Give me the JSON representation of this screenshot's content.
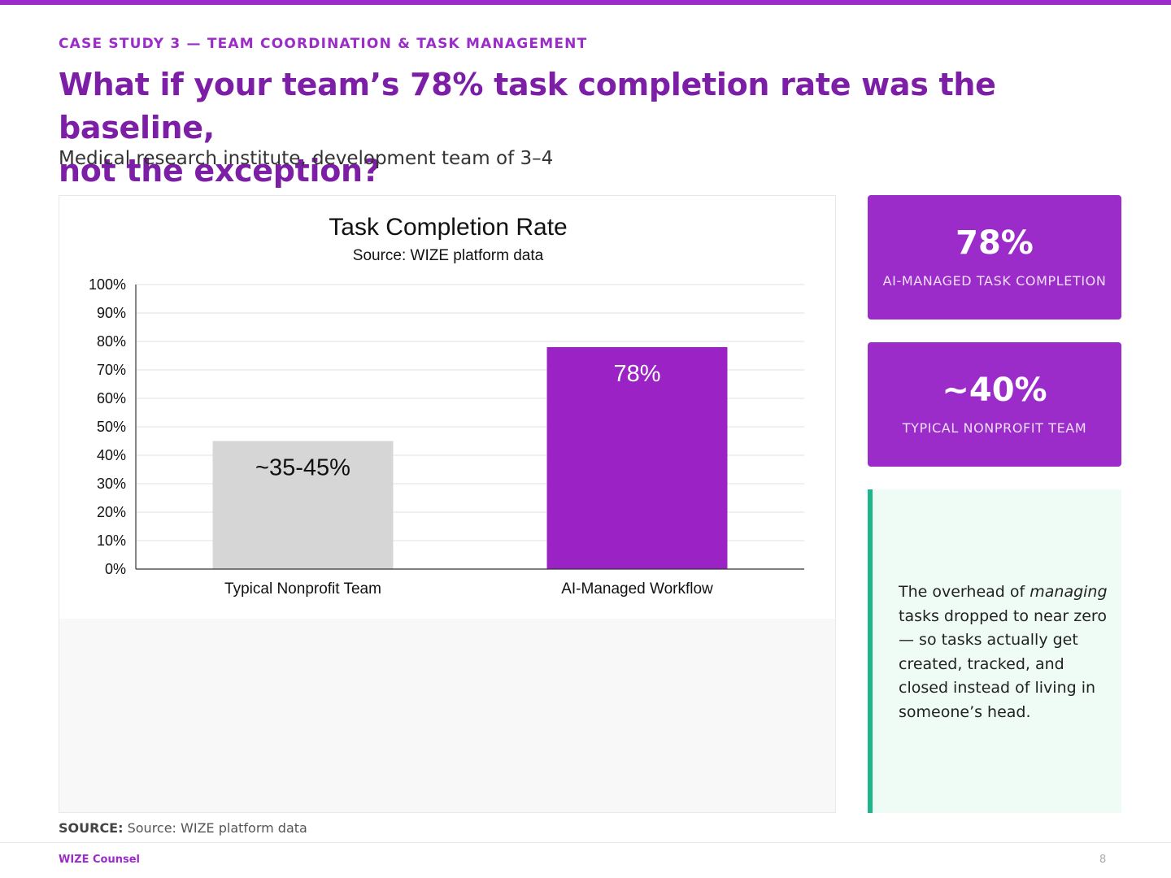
{
  "header": {
    "eyebrow": "CASE STUDY 3 — TEAM COORDINATION & TASK MANAGEMENT",
    "title_line1": "What if your team’s 78% task completion rate was the baseline,",
    "title_line2": "not the exception?",
    "subtitle": "Medical research institute, development team of 3–4"
  },
  "chart_data": {
    "type": "bar",
    "title": "Task Completion Rate",
    "subtitle": "Source: WIZE platform data",
    "categories": [
      "Typical Nonprofit Team",
      "AI-Managed Workflow"
    ],
    "values": [
      45,
      78
    ],
    "data_labels": [
      "~35-45%",
      "78%"
    ],
    "bar_colors": [
      "#d6d6d6",
      "#9b22c4"
    ],
    "label_colors": [
      "#111111",
      "#ffffff"
    ],
    "ylim": [
      0,
      100
    ],
    "yticks": [
      "0%",
      "10%",
      "20%",
      "30%",
      "40%",
      "50%",
      "60%",
      "70%",
      "80%",
      "90%",
      "100%"
    ],
    "grid": true,
    "xlabel": "",
    "ylabel": ""
  },
  "stats": [
    {
      "value": "78%",
      "label": "AI-MANAGED TASK COMPLETION"
    },
    {
      "value": "~40%",
      "label": "TYPICAL NONPROFIT TEAM"
    }
  ],
  "callout": {
    "text_before": "The overhead of ",
    "emphasis": "managing",
    "text_after": " tasks dropped to near zero — so tasks actually get created, tracked, and closed instead of living in someone’s head."
  },
  "source": {
    "label": "SOURCE:",
    "text": " Source: WIZE platform data"
  },
  "footer": {
    "brand": "WIZE Counsel",
    "page": "8"
  },
  "colors": {
    "accent": "#9b2cc9",
    "headline": "#7d1fa6",
    "callout_border": "#1db58a",
    "callout_bg": "#effcf6"
  }
}
